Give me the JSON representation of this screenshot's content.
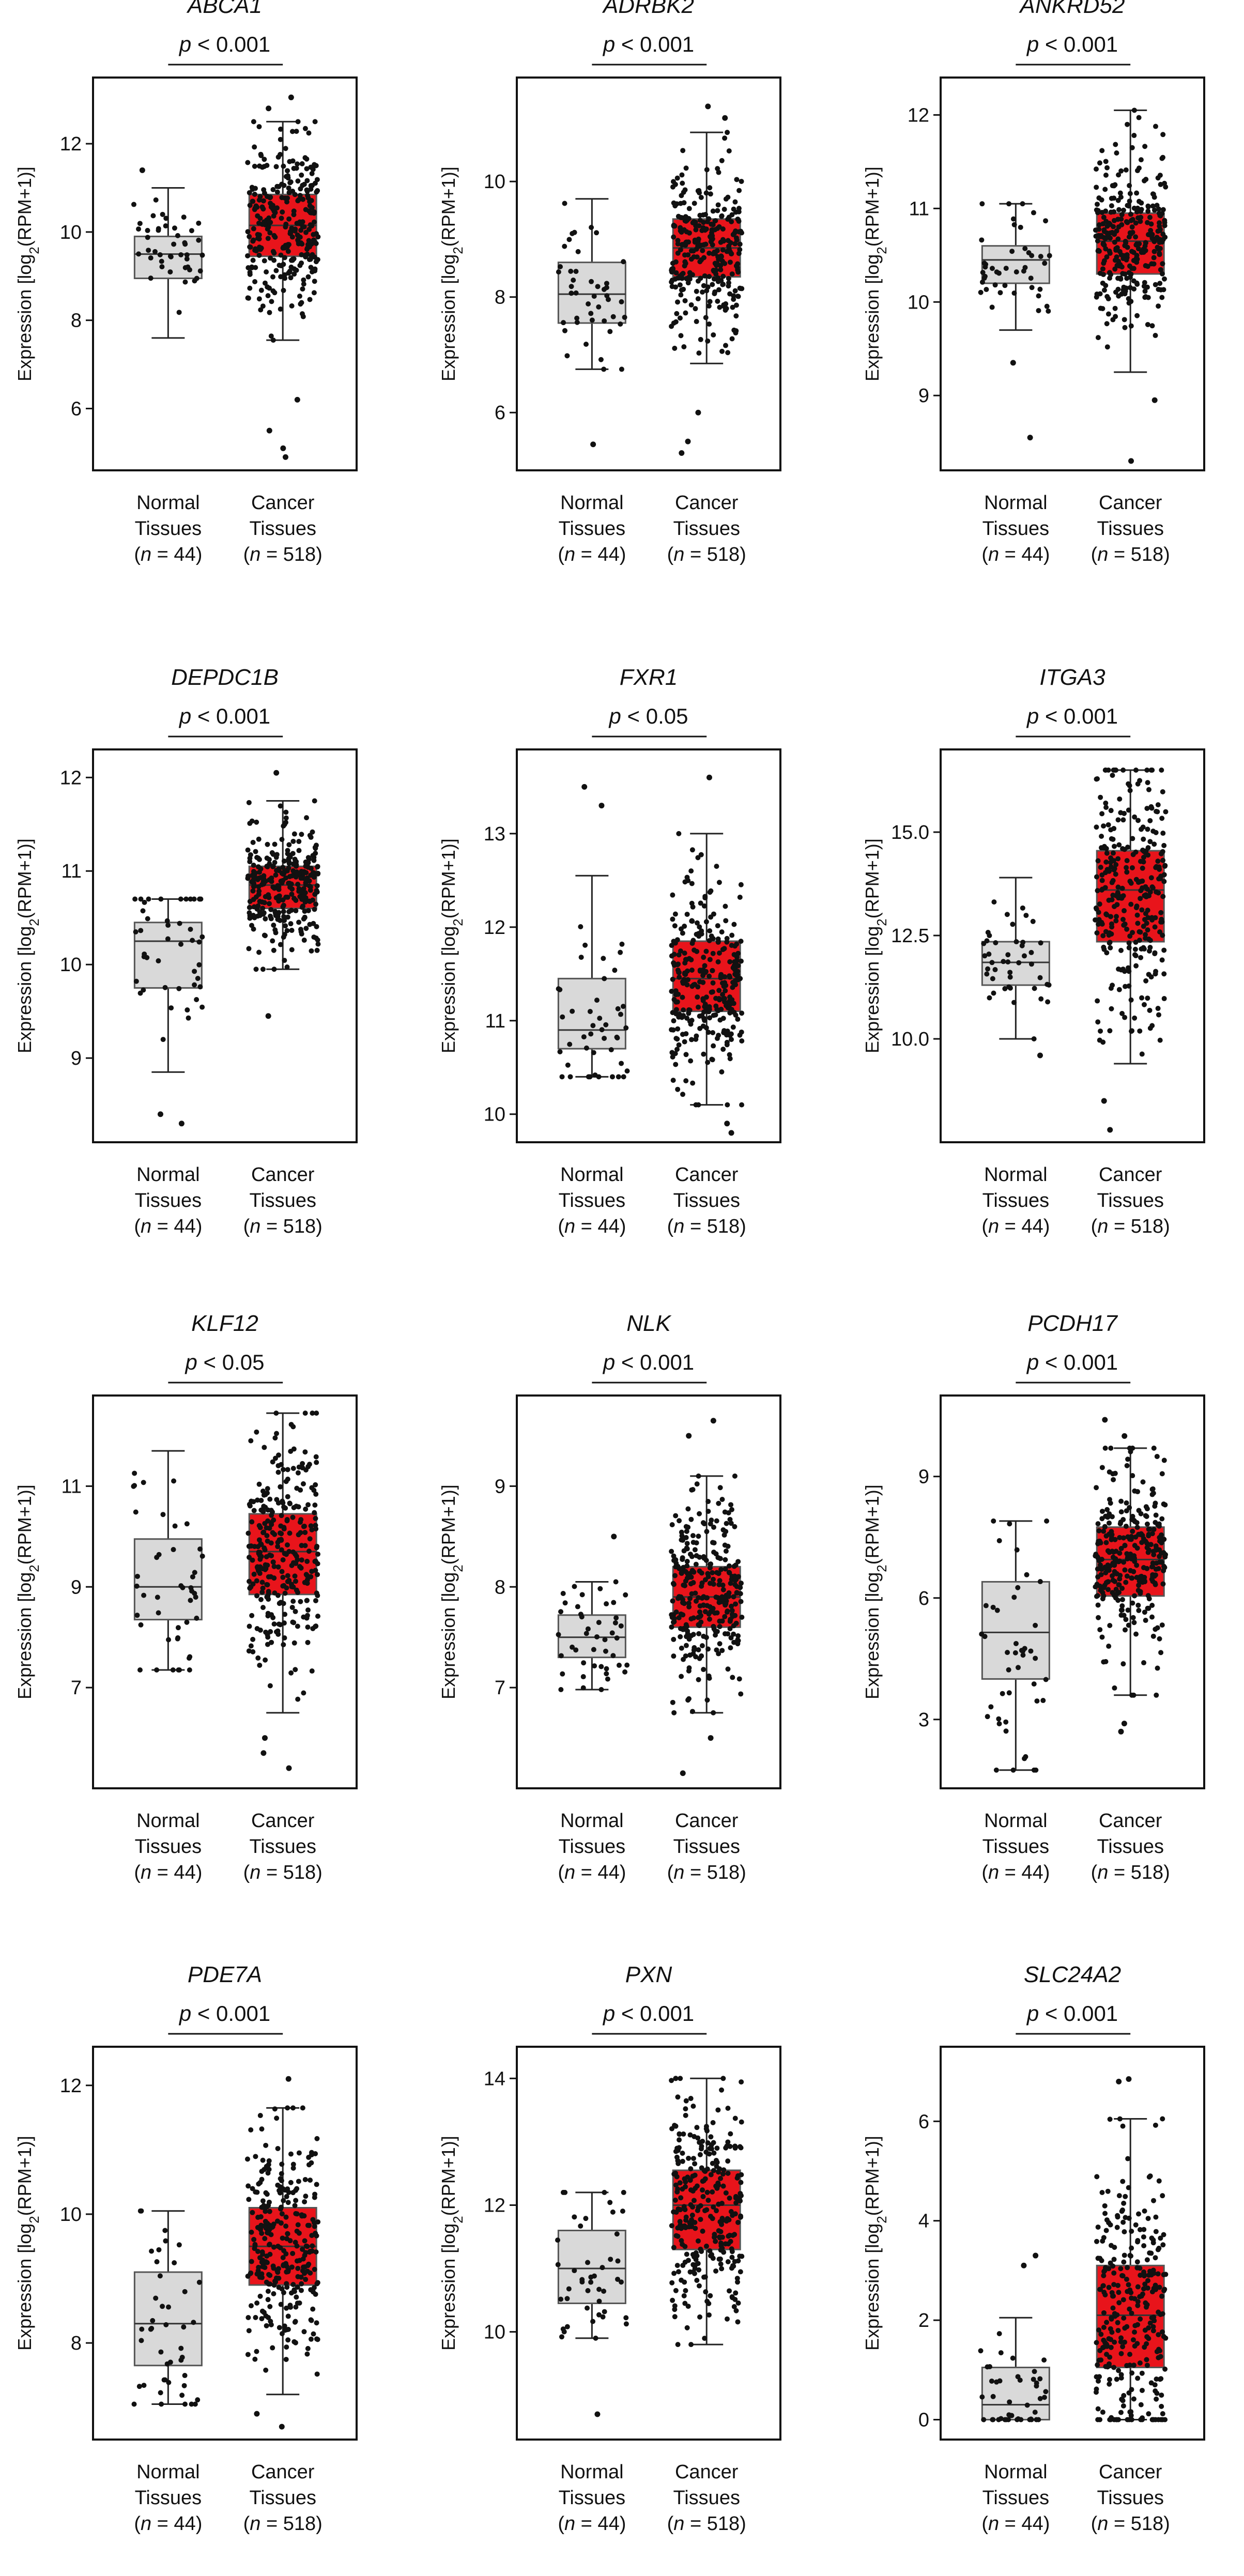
{
  "figure": {
    "ylabel_main": "Expression [log",
    "ylabel_sub": "2",
    "ylabel_end": "(RPM+1)]",
    "group_colors": {
      "normal": "#d9d9d9",
      "cancer": "#e8141b"
    }
  },
  "chart_data": [
    {
      "type": "box",
      "title": "ABCA1",
      "pvalue_text": {
        "p": "p",
        "rest": " < 0.001"
      },
      "categories": [
        {
          "line1": "Normal",
          "line2": "Tissues",
          "n_prefix": "(",
          "n_italic": "n",
          "n_rest": " = 44)"
        },
        {
          "line1": "Cancer",
          "line2": "Tissues",
          "n_prefix": "(",
          "n_italic": "n",
          "n_rest": " = 518)"
        }
      ],
      "ylim": [
        4.6,
        13.5
      ],
      "yticks": [
        6,
        8,
        10,
        12
      ],
      "groups": [
        {
          "name": "Normal Tissues",
          "n": 44,
          "whisker_low": 7.6,
          "q1": 8.95,
          "median": 9.5,
          "q3": 9.9,
          "whisker_high": 11.0,
          "outliers": [
            11.4
          ]
        },
        {
          "name": "Cancer Tissues",
          "n": 518,
          "whisker_low": 7.55,
          "q1": 9.45,
          "median": 10.15,
          "q3": 10.85,
          "whisker_high": 12.5,
          "outliers": [
            4.9,
            5.1,
            5.5,
            6.2,
            12.8,
            13.05
          ]
        }
      ]
    },
    {
      "type": "box",
      "title": "ADRBK2",
      "pvalue_text": {
        "p": "p",
        "rest": " < 0.001"
      },
      "categories": [
        {
          "line1": "Normal",
          "line2": "Tissues",
          "n_prefix": "(",
          "n_italic": "n",
          "n_rest": " = 44)"
        },
        {
          "line1": "Cancer",
          "line2": "Tissues",
          "n_prefix": "(",
          "n_italic": "n",
          "n_rest": " = 518)"
        }
      ],
      "ylim": [
        5.0,
        11.8
      ],
      "yticks": [
        6,
        8,
        10
      ],
      "groups": [
        {
          "name": "Normal Tissues",
          "n": 44,
          "whisker_low": 6.75,
          "q1": 7.55,
          "median": 8.05,
          "q3": 8.6,
          "whisker_high": 9.7,
          "outliers": [
            5.45
          ]
        },
        {
          "name": "Cancer Tissues",
          "n": 518,
          "whisker_low": 6.85,
          "q1": 8.35,
          "median": 8.85,
          "q3": 9.35,
          "whisker_high": 10.85,
          "outliers": [
            5.3,
            5.5,
            6.0,
            11.1,
            11.3
          ]
        }
      ]
    },
    {
      "type": "box",
      "title": "ANKRD52",
      "pvalue_text": {
        "p": "p",
        "rest": " < 0.001"
      },
      "categories": [
        {
          "line1": "Normal",
          "line2": "Tissues",
          "n_prefix": "(",
          "n_italic": "n",
          "n_rest": " = 44)"
        },
        {
          "line1": "Cancer",
          "line2": "Tissues",
          "n_prefix": "(",
          "n_italic": "n",
          "n_rest": " = 518)"
        }
      ],
      "ylim": [
        8.2,
        12.4
      ],
      "yticks": [
        9,
        10,
        11,
        12
      ],
      "groups": [
        {
          "name": "Normal Tissues",
          "n": 44,
          "whisker_low": 9.7,
          "q1": 10.2,
          "median": 10.45,
          "q3": 10.6,
          "whisker_high": 11.05,
          "outliers": [
            8.55,
            9.35
          ]
        },
        {
          "name": "Cancer Tissues",
          "n": 518,
          "whisker_low": 9.25,
          "q1": 10.3,
          "median": 10.65,
          "q3": 10.95,
          "whisker_high": 12.05,
          "outliers": [
            8.3,
            8.95
          ]
        }
      ]
    },
    {
      "type": "box",
      "title": "DEPDC1B",
      "pvalue_text": {
        "p": "p",
        "rest": " < 0.001"
      },
      "categories": [
        {
          "line1": "Normal",
          "line2": "Tissues",
          "n_prefix": "(",
          "n_italic": "n",
          "n_rest": " = 44)"
        },
        {
          "line1": "Cancer",
          "line2": "Tissues",
          "n_prefix": "(",
          "n_italic": "n",
          "n_rest": " = 518)"
        }
      ],
      "ylim": [
        8.1,
        12.3
      ],
      "yticks": [
        9,
        10,
        11,
        12
      ],
      "groups": [
        {
          "name": "Normal Tissues",
          "n": 44,
          "whisker_low": 8.85,
          "q1": 9.75,
          "median": 10.25,
          "q3": 10.45,
          "whisker_high": 10.7,
          "outliers": [
            8.3,
            8.4
          ]
        },
        {
          "name": "Cancer Tissues",
          "n": 518,
          "whisker_low": 9.95,
          "q1": 10.6,
          "median": 10.85,
          "q3": 11.05,
          "whisker_high": 11.75,
          "outliers": [
            9.45,
            12.05
          ]
        }
      ]
    },
    {
      "type": "box",
      "title": "FXR1",
      "pvalue_text": {
        "p": "p",
        "rest": " < 0.05"
      },
      "categories": [
        {
          "line1": "Normal",
          "line2": "Tissues",
          "n_prefix": "(",
          "n_italic": "n",
          "n_rest": " = 44)"
        },
        {
          "line1": "Cancer",
          "line2": "Tissues",
          "n_prefix": "(",
          "n_italic": "n",
          "n_rest": " = 518)"
        }
      ],
      "ylim": [
        9.7,
        13.9
      ],
      "yticks": [
        10,
        11,
        12,
        13
      ],
      "groups": [
        {
          "name": "Normal Tissues",
          "n": 44,
          "whisker_low": 10.4,
          "q1": 10.7,
          "median": 10.9,
          "q3": 11.45,
          "whisker_high": 12.55,
          "outliers": [
            13.3,
            13.5
          ]
        },
        {
          "name": "Cancer Tissues",
          "n": 518,
          "whisker_low": 10.1,
          "q1": 11.1,
          "median": 11.45,
          "q3": 11.85,
          "whisker_high": 13.0,
          "outliers": [
            9.8,
            9.9,
            13.6
          ]
        }
      ]
    },
    {
      "type": "box",
      "title": "ITGA3",
      "pvalue_text": {
        "p": "p",
        "rest": " < 0.001"
      },
      "categories": [
        {
          "line1": "Normal",
          "line2": "Tissues",
          "n_prefix": "(",
          "n_italic": "n",
          "n_rest": " = 44)"
        },
        {
          "line1": "Cancer",
          "line2": "Tissues",
          "n_prefix": "(",
          "n_italic": "n",
          "n_rest": " = 518)"
        }
      ],
      "ylim": [
        7.5,
        17.0
      ],
      "yticks": [
        10.0,
        12.5,
        15.0
      ],
      "ytick_labels": [
        "10.0",
        "12.5",
        "15.0"
      ],
      "groups": [
        {
          "name": "Normal Tissues",
          "n": 44,
          "whisker_low": 10.0,
          "q1": 11.3,
          "median": 11.85,
          "q3": 12.35,
          "whisker_high": 13.9,
          "outliers": [
            9.6
          ]
        },
        {
          "name": "Cancer Tissues",
          "n": 518,
          "whisker_low": 9.4,
          "q1": 12.35,
          "median": 13.6,
          "q3": 14.55,
          "whisker_high": 16.5,
          "outliers": [
            7.8,
            8.5
          ]
        }
      ]
    },
    {
      "type": "box",
      "title": "KLF12",
      "pvalue_text": {
        "p": "p",
        "rest": " < 0.05"
      },
      "categories": [
        {
          "line1": "Normal",
          "line2": "Tissues",
          "n_prefix": "(",
          "n_italic": "n",
          "n_rest": " = 44)"
        },
        {
          "line1": "Cancer",
          "line2": "Tissues",
          "n_prefix": "(",
          "n_italic": "n",
          "n_rest": " = 518)"
        }
      ],
      "ylim": [
        5.0,
        12.8
      ],
      "yticks": [
        7,
        9,
        11
      ],
      "groups": [
        {
          "name": "Normal Tissues",
          "n": 44,
          "whisker_low": 7.35,
          "q1": 8.35,
          "median": 9.0,
          "q3": 9.95,
          "whisker_high": 11.7,
          "outliers": []
        },
        {
          "name": "Cancer Tissues",
          "n": 518,
          "whisker_low": 6.5,
          "q1": 8.85,
          "median": 9.7,
          "q3": 10.45,
          "whisker_high": 12.45,
          "outliers": [
            5.4,
            5.7,
            6.0
          ]
        }
      ]
    },
    {
      "type": "box",
      "title": "NLK",
      "pvalue_text": {
        "p": "p",
        "rest": " < 0.001"
      },
      "categories": [
        {
          "line1": "Normal",
          "line2": "Tissues",
          "n_prefix": "(",
          "n_italic": "n",
          "n_rest": " = 44)"
        },
        {
          "line1": "Cancer",
          "line2": "Tissues",
          "n_prefix": "(",
          "n_italic": "n",
          "n_rest": " = 518)"
        }
      ],
      "ylim": [
        6.0,
        9.9
      ],
      "yticks": [
        7,
        8,
        9
      ],
      "groups": [
        {
          "name": "Normal Tissues",
          "n": 44,
          "whisker_low": 6.98,
          "q1": 7.3,
          "median": 7.5,
          "q3": 7.72,
          "whisker_high": 8.05,
          "outliers": [
            8.5
          ]
        },
        {
          "name": "Cancer Tissues",
          "n": 518,
          "whisker_low": 6.75,
          "q1": 7.6,
          "median": 7.9,
          "q3": 8.2,
          "whisker_high": 9.1,
          "outliers": [
            6.15,
            6.5,
            9.5,
            9.65
          ]
        }
      ]
    },
    {
      "type": "box",
      "title": "PCDH17",
      "pvalue_text": {
        "p": "p",
        "rest": " < 0.001"
      },
      "categories": [
        {
          "line1": "Normal",
          "line2": "Tissues",
          "n_prefix": "(",
          "n_italic": "n",
          "n_rest": " = 44)"
        },
        {
          "line1": "Cancer",
          "line2": "Tissues",
          "n_prefix": "(",
          "n_italic": "n",
          "n_rest": " = 518)"
        }
      ],
      "ylim": [
        1.3,
        11.0
      ],
      "yticks": [
        3,
        6,
        9
      ],
      "groups": [
        {
          "name": "Normal Tissues",
          "n": 44,
          "whisker_low": 1.75,
          "q1": 4.0,
          "median": 5.15,
          "q3": 6.4,
          "whisker_high": 7.9,
          "outliers": []
        },
        {
          "name": "Cancer Tissues",
          "n": 518,
          "whisker_low": 3.6,
          "q1": 6.05,
          "median": 6.95,
          "q3": 7.75,
          "whisker_high": 9.7,
          "outliers": [
            2.7,
            2.9,
            10.0,
            10.4
          ]
        }
      ]
    },
    {
      "type": "box",
      "title": "PDE7A",
      "pvalue_text": {
        "p": "p",
        "rest": " < 0.001"
      },
      "categories": [
        {
          "line1": "Normal",
          "line2": "Tissues",
          "n_prefix": "(",
          "n_italic": "n",
          "n_rest": " = 44)"
        },
        {
          "line1": "Cancer",
          "line2": "Tissues",
          "n_prefix": "(",
          "n_italic": "n",
          "n_rest": " = 518)"
        }
      ],
      "ylim": [
        6.5,
        12.6
      ],
      "yticks": [
        8,
        10,
        12
      ],
      "groups": [
        {
          "name": "Normal Tissues",
          "n": 44,
          "whisker_low": 7.05,
          "q1": 7.65,
          "median": 8.3,
          "q3": 9.1,
          "whisker_high": 10.05,
          "outliers": []
        },
        {
          "name": "Cancer Tissues",
          "n": 518,
          "whisker_low": 7.2,
          "q1": 8.9,
          "median": 9.5,
          "q3": 10.1,
          "whisker_high": 11.65,
          "outliers": [
            6.7,
            6.9,
            12.1
          ]
        }
      ]
    },
    {
      "type": "box",
      "title": "PXN",
      "pvalue_text": {
        "p": "p",
        "rest": " < 0.001"
      },
      "categories": [
        {
          "line1": "Normal",
          "line2": "Tissues",
          "n_prefix": "(",
          "n_italic": "n",
          "n_rest": " = 44)"
        },
        {
          "line1": "Cancer",
          "line2": "Tissues",
          "n_prefix": "(",
          "n_italic": "n",
          "n_rest": " = 518)"
        }
      ],
      "ylim": [
        8.3,
        14.5
      ],
      "yticks": [
        10,
        12,
        14
      ],
      "groups": [
        {
          "name": "Normal Tissues",
          "n": 44,
          "whisker_low": 9.9,
          "q1": 10.45,
          "median": 11.0,
          "q3": 11.6,
          "whisker_high": 12.2,
          "outliers": [
            8.7
          ]
        },
        {
          "name": "Cancer Tissues",
          "n": 518,
          "whisker_low": 9.8,
          "q1": 11.3,
          "median": 12.0,
          "q3": 12.55,
          "whisker_high": 14.0,
          "outliers": []
        }
      ]
    },
    {
      "type": "box",
      "title": "SLC24A2",
      "pvalue_text": {
        "p": "p",
        "rest": " < 0.001"
      },
      "categories": [
        {
          "line1": "Normal",
          "line2": "Tissues",
          "n_prefix": "(",
          "n_italic": "n",
          "n_rest": " = 44)"
        },
        {
          "line1": "Cancer",
          "line2": "Tissues",
          "n_prefix": "(",
          "n_italic": "n",
          "n_rest": " = 518)"
        }
      ],
      "ylim": [
        -0.4,
        7.5
      ],
      "yticks": [
        0,
        2,
        4,
        6
      ],
      "groups": [
        {
          "name": "Normal Tissues",
          "n": 44,
          "whisker_low": 0.0,
          "q1": 0.0,
          "median": 0.3,
          "q3": 1.05,
          "whisker_high": 2.05,
          "outliers": [
            3.1,
            3.3
          ]
        },
        {
          "name": "Cancer Tissues",
          "n": 518,
          "whisker_low": 0.0,
          "q1": 1.05,
          "median": 2.1,
          "q3": 3.1,
          "whisker_high": 6.05,
          "outliers": [
            6.8,
            6.85
          ]
        }
      ]
    }
  ]
}
